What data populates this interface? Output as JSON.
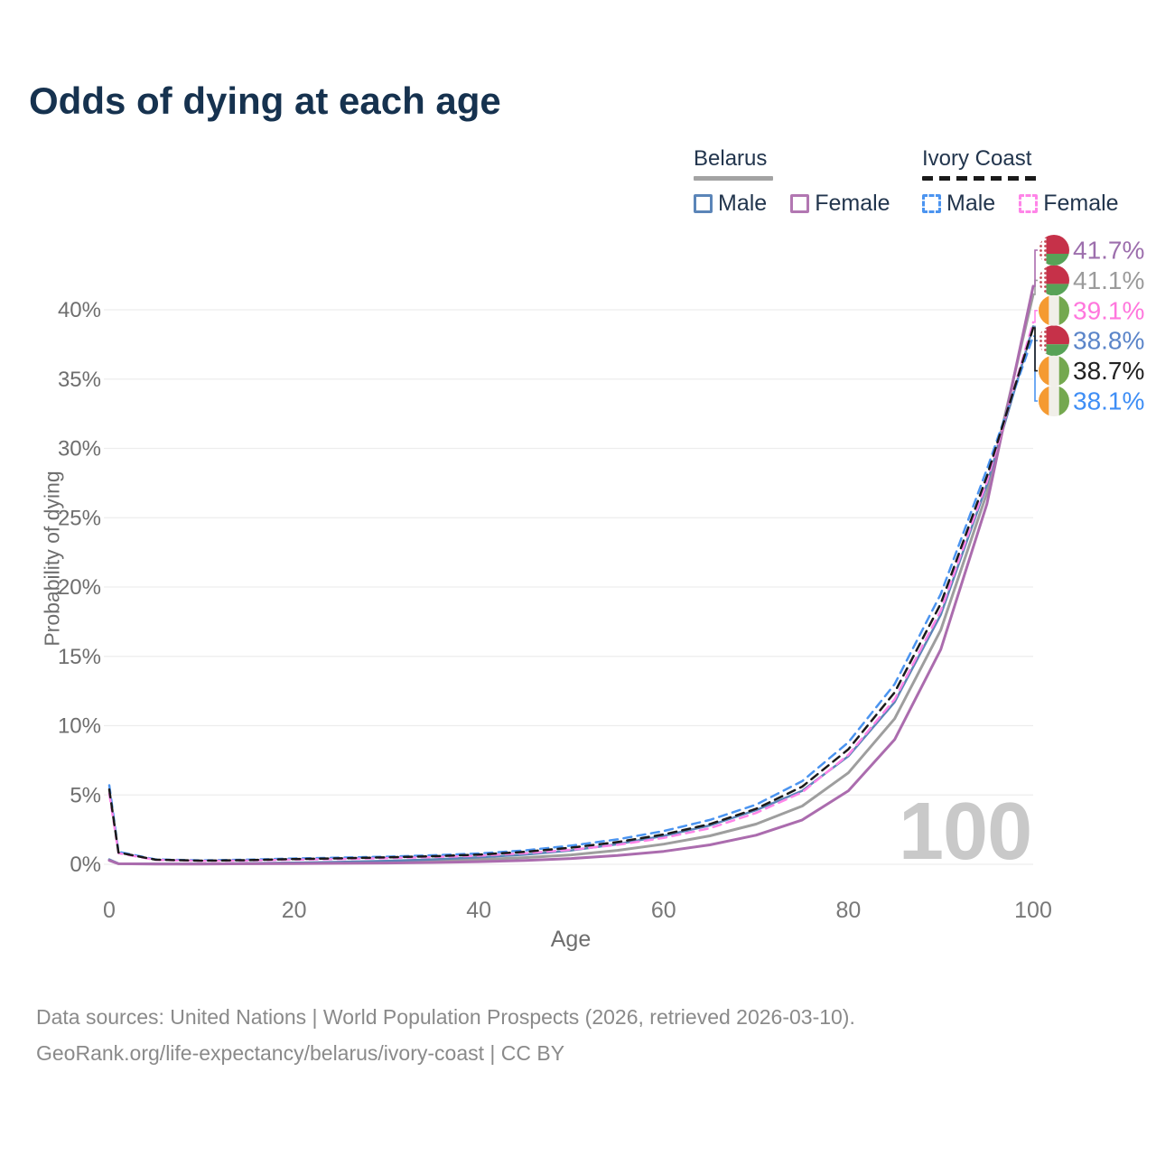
{
  "title": "Odds of dying at each age",
  "legend": {
    "groups": [
      {
        "name": "Belarus",
        "line_style": "solid",
        "line_color": "#a3a3a3",
        "items": [
          {
            "label": "Male",
            "swatch_color": "#5b85b8",
            "swatch_style": "solid"
          },
          {
            "label": "Female",
            "swatch_color": "#b277b2",
            "swatch_style": "solid"
          }
        ]
      },
      {
        "name": "Ivory Coast",
        "line_style": "dashed",
        "line_color": "#1a1a1a",
        "items": [
          {
            "label": "Male",
            "swatch_color": "#4b94f0",
            "swatch_style": "dashed"
          },
          {
            "label": "Female",
            "swatch_color": "#ff85e8",
            "swatch_style": "dashed"
          }
        ]
      }
    ]
  },
  "chart_data": {
    "type": "line",
    "title": "Odds of dying at each age",
    "xlabel": "Age",
    "ylabel": "Probability of dying",
    "xlim": [
      0,
      100
    ],
    "ylim": [
      0,
      45
    ],
    "grid": true,
    "legend_position": "top-right",
    "watermark": "100",
    "x_ticks": [
      0,
      20,
      40,
      60,
      80,
      100
    ],
    "y_ticks": [
      {
        "value": 0,
        "label": "0%"
      },
      {
        "value": 5,
        "label": "5%"
      },
      {
        "value": 10,
        "label": "10%"
      },
      {
        "value": 15,
        "label": "15%"
      },
      {
        "value": 20,
        "label": "20%"
      },
      {
        "value": 25,
        "label": "25%"
      },
      {
        "value": 30,
        "label": "30%"
      },
      {
        "value": 35,
        "label": "35%"
      },
      {
        "value": 40,
        "label": "40%"
      }
    ],
    "ages": [
      0,
      1,
      5,
      10,
      15,
      20,
      25,
      30,
      35,
      40,
      45,
      50,
      55,
      60,
      65,
      70,
      75,
      80,
      85,
      90,
      95,
      100
    ],
    "series": [
      {
        "name": "Belarus Both sexes",
        "country": "Belarus",
        "sex": "Both",
        "color": "#9e9e9e",
        "dash": "solid",
        "width": 3,
        "values": [
          0.3,
          0.04,
          0.03,
          0.03,
          0.05,
          0.09,
          0.12,
          0.17,
          0.24,
          0.34,
          0.48,
          0.68,
          1.0,
          1.45,
          2.05,
          2.9,
          4.2,
          6.6,
          10.5,
          16.9,
          26.8,
          41.1
        ],
        "end": {
          "text": "41.1%",
          "color": "#9b9b9b",
          "flag": "belarus",
          "slot": 1
        }
      },
      {
        "name": "Belarus Male",
        "country": "Belarus",
        "sex": "Male",
        "color": "#5b85b8",
        "dash": "solid",
        "width": 2.5,
        "values": [
          0.35,
          0.05,
          0.03,
          0.03,
          0.07,
          0.12,
          0.17,
          0.24,
          0.35,
          0.5,
          0.7,
          1.0,
          1.45,
          2.05,
          2.8,
          3.9,
          5.3,
          7.8,
          11.7,
          18.0,
          27.4,
          38.8
        ],
        "end": {
          "text": "38.8%",
          "color": "#5b85c9",
          "flag": "belarus",
          "slot": 3
        }
      },
      {
        "name": "Belarus Female",
        "country": "Belarus",
        "sex": "Female",
        "color": "#ab6cae",
        "dash": "solid",
        "width": 3,
        "values": [
          0.28,
          0.04,
          0.02,
          0.02,
          0.04,
          0.05,
          0.07,
          0.09,
          0.13,
          0.19,
          0.28,
          0.42,
          0.63,
          0.93,
          1.4,
          2.1,
          3.2,
          5.3,
          9.0,
          15.5,
          26.0,
          41.7
        ],
        "end": {
          "text": "41.7%",
          "color": "#9d6fad",
          "flag": "belarus",
          "slot": 0
        }
      },
      {
        "name": "Ivory Coast Male",
        "country": "Ivory Coast",
        "sex": "Male",
        "color": "#4b94f0",
        "dash": "dashed",
        "width": 2.5,
        "values": [
          5.7,
          0.9,
          0.35,
          0.28,
          0.33,
          0.42,
          0.48,
          0.55,
          0.65,
          0.78,
          1.0,
          1.35,
          1.8,
          2.4,
          3.2,
          4.3,
          6.0,
          8.8,
          13.0,
          19.5,
          28.5,
          38.1
        ],
        "end": {
          "text": "38.1%",
          "color": "#3f8ef5",
          "flag": "ivory-coast",
          "slot": 5
        }
      },
      {
        "name": "Ivory Coast Female",
        "country": "Ivory Coast",
        "sex": "Female",
        "color": "#ff85e8",
        "dash": "dashed",
        "width": 2.5,
        "values": [
          5.1,
          0.8,
          0.31,
          0.24,
          0.27,
          0.33,
          0.38,
          0.44,
          0.52,
          0.62,
          0.8,
          1.05,
          1.4,
          1.9,
          2.6,
          3.7,
          5.2,
          7.9,
          11.9,
          18.3,
          27.6,
          39.1
        ],
        "end": {
          "text": "39.1%",
          "color": "#ff77dd",
          "flag": "ivory-coast",
          "slot": 2
        }
      },
      {
        "name": "Ivory Coast Both sexes",
        "country": "Ivory Coast",
        "sex": "Both",
        "color": "#1a1a1a",
        "dash": "dashed",
        "width": 2.5,
        "values": [
          5.4,
          0.85,
          0.33,
          0.26,
          0.3,
          0.38,
          0.43,
          0.5,
          0.58,
          0.7,
          0.9,
          1.2,
          1.6,
          2.15,
          2.9,
          4.0,
          5.6,
          8.3,
          12.4,
          18.8,
          28.0,
          38.7
        ],
        "end": {
          "text": "38.7%",
          "color": "#222222",
          "flag": "ivory-coast",
          "slot": 4
        }
      }
    ]
  },
  "footer": {
    "line1": "Data sources: United Nations | World Population Prospects (2026, retrieved 2026-03-10).",
    "line2": "GeoRank.org/life-expectancy/belarus/ivory-coast | CC BY"
  }
}
